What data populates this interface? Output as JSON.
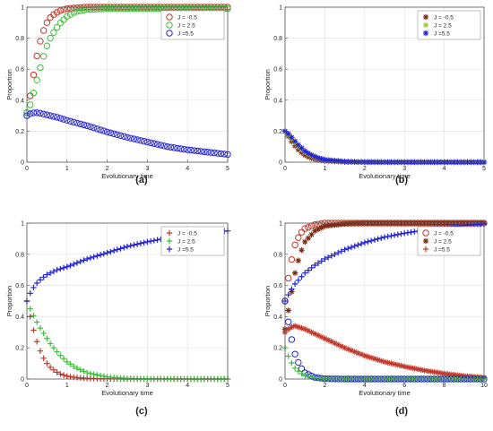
{
  "chart_data": [
    {
      "panel_label": "(a)",
      "type": "scatter",
      "xlabel": "Evolutionary time",
      "ylabel": "Proportion",
      "xlim": [
        0,
        5
      ],
      "ylim": [
        0,
        1
      ],
      "xticks": [
        "0",
        "1",
        "2",
        "3",
        "4",
        "5"
      ],
      "yticks": [
        "0",
        "0.2",
        "0.4",
        "0.6",
        "0.8",
        "1"
      ],
      "grid": true,
      "legend_position": "top-right",
      "series": [
        {
          "name": "J = -0.5",
          "marker": "circle",
          "color": "#c0392b",
          "x": [
            0,
            0.1,
            0.2,
            0.3,
            0.4,
            0.5,
            0.6,
            0.8,
            1.0,
            1.2,
            1.5,
            2.0,
            2.5,
            3.0,
            3.5,
            4.0,
            4.5,
            5.0
          ],
          "y": [
            0.32,
            0.45,
            0.62,
            0.75,
            0.84,
            0.9,
            0.94,
            0.975,
            0.99,
            0.995,
            1.0,
            1.0,
            1.0,
            1.0,
            1.0,
            1.0,
            1.0,
            1.0
          ]
        },
        {
          "name": "J = 2.5",
          "marker": "circle",
          "color": "#3fbf3f",
          "x": [
            0,
            0.1,
            0.2,
            0.3,
            0.4,
            0.5,
            0.6,
            0.8,
            1.0,
            1.2,
            1.5,
            2.0,
            2.5,
            3.0,
            3.5,
            4.0,
            4.5,
            5.0
          ],
          "y": [
            0.32,
            0.38,
            0.48,
            0.58,
            0.67,
            0.75,
            0.81,
            0.89,
            0.94,
            0.97,
            0.985,
            0.99,
            0.99,
            0.99,
            0.99,
            0.99,
            0.99,
            0.99
          ]
        },
        {
          "name": "J =5.5",
          "marker": "circle",
          "color": "#2323d6",
          "x": [
            0,
            0.1,
            0.2,
            0.3,
            0.5,
            0.75,
            1.0,
            1.5,
            2.0,
            2.5,
            3.0,
            3.5,
            4.0,
            4.5,
            5.0
          ],
          "y": [
            0.3,
            0.315,
            0.32,
            0.318,
            0.305,
            0.29,
            0.27,
            0.235,
            0.195,
            0.16,
            0.13,
            0.1,
            0.08,
            0.065,
            0.05
          ]
        }
      ]
    },
    {
      "panel_label": "(b)",
      "type": "scatter",
      "xlabel": "Evolutionary time",
      "ylabel": "Proportion",
      "xlim": [
        0,
        5
      ],
      "ylim": [
        0,
        1
      ],
      "xticks": [
        "0",
        "1",
        "2",
        "3",
        "4",
        "5"
      ],
      "yticks": [
        "0",
        "0.2",
        "0.4",
        "0.6",
        "0.8",
        "1"
      ],
      "grid": true,
      "legend_position": "top-right",
      "series": [
        {
          "name": "J = -0.5",
          "marker": "star",
          "color": "#7a2a10",
          "x": [
            0,
            0.1,
            0.2,
            0.3,
            0.4,
            0.5,
            0.6,
            0.8,
            1.0,
            1.5,
            2.0,
            3.0,
            4.0,
            5.0
          ],
          "y": [
            0.2,
            0.16,
            0.12,
            0.09,
            0.065,
            0.045,
            0.032,
            0.016,
            0.008,
            0.002,
            0.0,
            0.0,
            0.0,
            0.0
          ]
        },
        {
          "name": "J = 2.5",
          "marker": "star",
          "color": "#a9c93a",
          "x": [
            0,
            0.1,
            0.2,
            0.3,
            0.4,
            0.5,
            0.6,
            0.8,
            1.0,
            1.5,
            2.0,
            3.0,
            4.0,
            5.0
          ],
          "y": [
            0.2,
            0.17,
            0.14,
            0.11,
            0.085,
            0.065,
            0.048,
            0.026,
            0.014,
            0.004,
            0.001,
            0.0,
            0.0,
            0.0
          ]
        },
        {
          "name": "J =5.5",
          "marker": "star",
          "color": "#2323d6",
          "x": [
            0,
            0.1,
            0.2,
            0.3,
            0.4,
            0.5,
            0.6,
            0.8,
            1.0,
            1.5,
            2.0,
            3.0,
            4.0,
            5.0
          ],
          "y": [
            0.2,
            0.18,
            0.15,
            0.12,
            0.095,
            0.072,
            0.055,
            0.03,
            0.016,
            0.004,
            0.001,
            0.0,
            0.0,
            0.0
          ]
        }
      ]
    },
    {
      "panel_label": "(c)",
      "type": "scatter",
      "xlabel": "Evolutionary time",
      "ylabel": "Proportion",
      "xlim": [
        0,
        5
      ],
      "ylim": [
        0,
        1
      ],
      "xticks": [
        "0",
        "1",
        "2",
        "3",
        "4",
        "5"
      ],
      "yticks": [
        "0",
        "0.2",
        "0.4",
        "0.6",
        "0.8",
        "1"
      ],
      "grid": true,
      "legend_position": "top-right",
      "series": [
        {
          "name": "J = -0.5",
          "marker": "plus",
          "color": "#c0392b",
          "x": [
            0,
            0.1,
            0.2,
            0.3,
            0.4,
            0.5,
            0.6,
            0.8,
            1.0,
            1.2,
            1.5,
            2.0,
            2.5,
            3.0,
            4.0,
            5.0
          ],
          "y": [
            0.5,
            0.38,
            0.28,
            0.2,
            0.14,
            0.1,
            0.07,
            0.035,
            0.018,
            0.01,
            0.004,
            0.001,
            0.0,
            0.0,
            0.0,
            0.0
          ]
        },
        {
          "name": "J = 2.5",
          "marker": "plus",
          "color": "#3fbf3f",
          "x": [
            0,
            0.1,
            0.2,
            0.3,
            0.4,
            0.5,
            0.6,
            0.8,
            1.0,
            1.2,
            1.5,
            2.0,
            2.5,
            3.0,
            4.0,
            5.0
          ],
          "y": [
            0.5,
            0.44,
            0.39,
            0.34,
            0.3,
            0.26,
            0.22,
            0.16,
            0.11,
            0.075,
            0.04,
            0.013,
            0.004,
            0.001,
            0.0,
            0.0
          ]
        },
        {
          "name": "J =5.5",
          "marker": "plus",
          "color": "#2323d6",
          "x": [
            0,
            0.1,
            0.2,
            0.3,
            0.5,
            0.75,
            1.0,
            1.5,
            2.0,
            2.5,
            3.0,
            3.5,
            4.0,
            4.5,
            5.0
          ],
          "y": [
            0.5,
            0.56,
            0.6,
            0.63,
            0.67,
            0.7,
            0.72,
            0.77,
            0.81,
            0.85,
            0.88,
            0.905,
            0.925,
            0.94,
            0.95
          ]
        }
      ]
    },
    {
      "panel_label": "(d)",
      "type": "scatter",
      "xlabel": "Evolutionary time",
      "ylabel": "Proportion",
      "xlim": [
        0,
        10
      ],
      "ylim": [
        0,
        1
      ],
      "xticks": [
        "0",
        "2",
        "4",
        "6",
        "8",
        "10"
      ],
      "yticks": [
        "0",
        "0.2",
        "0.4",
        "0.6",
        "0.8",
        "1"
      ],
      "grid": true,
      "legend_position": "top-right",
      "legend": [
        {
          "name": "J = -0.5",
          "marker": "circle",
          "color": "#c0392b"
        },
        {
          "name": "J = 2.5",
          "marker": "star",
          "color": "#7a2a10"
        },
        {
          "name": "J =5.5",
          "marker": "plus",
          "color": "#c0392b"
        }
      ],
      "series": [
        {
          "marker": "circle",
          "color": "#c0392b",
          "x": [
            0,
            0.25,
            0.5,
            0.75,
            1.0,
            1.5,
            2.0,
            3.0,
            4.0,
            5.0,
            6.0,
            7.0,
            8.0,
            9.0,
            10.0
          ],
          "y": [
            0.5,
            0.72,
            0.86,
            0.93,
            0.965,
            0.99,
            1.0,
            1.0,
            1.0,
            1.0,
            1.0,
            1.0,
            1.0,
            1.0,
            1.0
          ]
        },
        {
          "marker": "star",
          "color": "#7a2a10",
          "x": [
            0,
            0.25,
            0.5,
            0.75,
            1.0,
            1.5,
            2.0,
            3.0,
            4.0,
            5.0,
            6.0,
            7.0,
            8.0,
            9.0,
            10.0
          ],
          "y": [
            0.32,
            0.5,
            0.68,
            0.8,
            0.88,
            0.95,
            0.98,
            0.995,
            1.0,
            1.0,
            1.0,
            1.0,
            1.0,
            1.0,
            1.0
          ]
        },
        {
          "marker": "plus",
          "color": "#2323d6",
          "x": [
            0,
            0.25,
            0.5,
            1.0,
            1.5,
            2.0,
            3.0,
            4.0,
            5.0,
            6.0,
            7.0,
            8.0,
            9.0,
            10.0
          ],
          "y": [
            0.5,
            0.56,
            0.61,
            0.68,
            0.73,
            0.77,
            0.83,
            0.875,
            0.91,
            0.935,
            0.955,
            0.97,
            0.985,
            0.995
          ]
        },
        {
          "marker": "star",
          "color": "#c0392b",
          "x": [
            0,
            0.25,
            0.5,
            1.0,
            1.5,
            2.0,
            3.0,
            4.0,
            5.0,
            6.0,
            7.0,
            8.0,
            9.0,
            10.0
          ],
          "y": [
            0.3,
            0.33,
            0.34,
            0.32,
            0.29,
            0.26,
            0.2,
            0.15,
            0.11,
            0.08,
            0.055,
            0.035,
            0.02,
            0.01
          ]
        },
        {
          "marker": "circle",
          "color": "#2323d6",
          "x": [
            0,
            0.25,
            0.5,
            0.75,
            1.0,
            1.5,
            2.0,
            3.0,
            4.0,
            6.0,
            8.0,
            10.0
          ],
          "y": [
            0.5,
            0.3,
            0.16,
            0.08,
            0.04,
            0.01,
            0.002,
            0.0,
            0.0,
            0.0,
            0.0,
            0.0
          ]
        },
        {
          "marker": "plus",
          "color": "#3fbf3f",
          "x": [
            0,
            0.25,
            0.5,
            0.75,
            1.0,
            1.5,
            2.0,
            3.0,
            4.0,
            6.0,
            8.0,
            10.0
          ],
          "y": [
            0.2,
            0.12,
            0.07,
            0.04,
            0.022,
            0.008,
            0.002,
            0.0,
            0.0,
            0.0,
            0.0,
            0.0
          ]
        }
      ]
    }
  ]
}
